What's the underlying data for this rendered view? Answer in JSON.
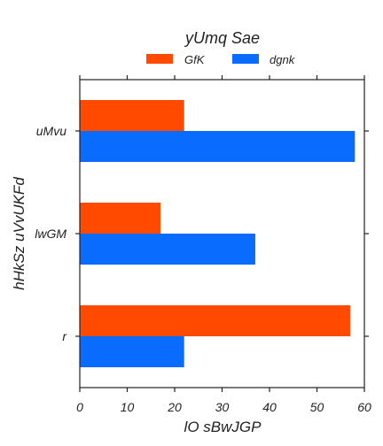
{
  "chart_data": {
    "type": "bar",
    "orientation": "horizontal",
    "title": "yUmq Sae",
    "xlabel": "lO sBwJGP",
    "ylabel": "hHkSz uVvUKFd",
    "categories": [
      "uMvu",
      "lwGM",
      "r"
    ],
    "series": [
      {
        "name": "GfK",
        "color": "#ff4a00",
        "values": [
          22,
          17,
          57
        ]
      },
      {
        "name": "dgnk",
        "color": "#0a6cff",
        "values": [
          58,
          37,
          22
        ]
      }
    ],
    "xlim": [
      0,
      60
    ],
    "xticks": [
      "0",
      "10",
      "20",
      "30",
      "40",
      "50",
      "60"
    ],
    "legend_position": "top-center",
    "grid": false
  }
}
